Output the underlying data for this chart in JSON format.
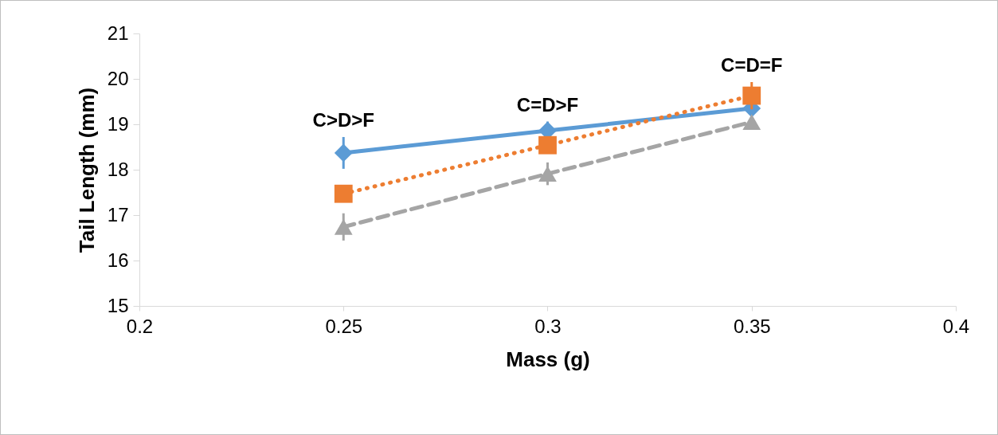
{
  "chart_data": {
    "type": "line",
    "xlabel": "Mass (g)",
    "ylabel": "Tail Length (mm)",
    "x": [
      0.25,
      0.3,
      0.35
    ],
    "series": [
      {
        "color": "#5b9bd5",
        "marker": "diamond",
        "line_style": "solid",
        "values": [
          18.37,
          18.86,
          19.35
        ],
        "errors": [
          0.35,
          0.2,
          null
        ]
      },
      {
        "color": "#ed7d31",
        "marker": "square",
        "line_style": "dotted",
        "values": [
          17.47,
          18.54,
          19.63
        ],
        "errors": [
          null,
          null,
          0.3
        ]
      },
      {
        "color": "#a5a5a5",
        "marker": "triangle",
        "line_style": "dashed",
        "values": [
          16.74,
          17.91,
          19.05
        ],
        "errors": [
          0.3,
          0.25,
          null
        ]
      }
    ],
    "xlim": [
      0.2,
      0.4
    ],
    "xticks": [
      0.2,
      0.25,
      0.3,
      0.35,
      0.4
    ],
    "ylim": [
      15,
      21
    ],
    "yticks": [
      15,
      16,
      17,
      18,
      19,
      20,
      21
    ],
    "grid": false,
    "annotations": [
      "C>D>F",
      "C=D>F",
      "C=D=F"
    ]
  }
}
